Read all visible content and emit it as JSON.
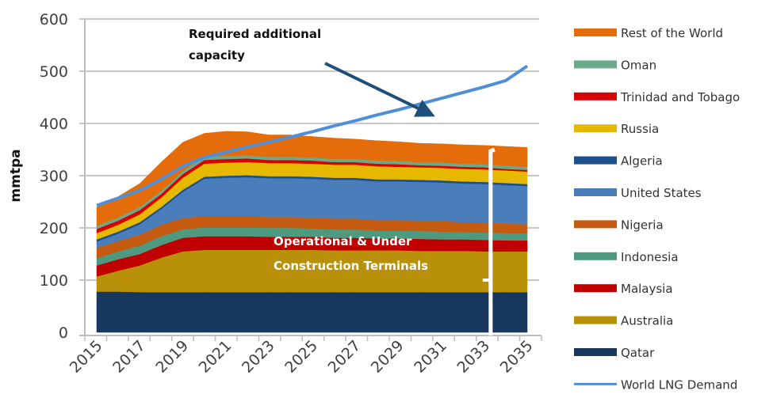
{
  "chart_data": {
    "type": "area",
    "stacked": true,
    "title": "",
    "xlabel": "",
    "ylabel": "mmtpa",
    "ylim": [
      0,
      600
    ],
    "yticks": [
      0,
      100,
      200,
      300,
      400,
      500,
      600
    ],
    "grid": true,
    "x": [
      2015,
      2016,
      2017,
      2018,
      2019,
      2020,
      2021,
      2022,
      2023,
      2024,
      2025,
      2026,
      2027,
      2028,
      2029,
      2030,
      2031,
      2032,
      2033,
      2034,
      2035
    ],
    "xtick_labels": [
      "2015",
      "2017",
      "2019",
      "2021",
      "2023",
      "2025",
      "2027",
      "2029",
      "2031",
      "2033",
      "2035"
    ],
    "legend_position": "right",
    "series": [
      {
        "name": "Qatar",
        "color": "#17375e",
        "values": [
          78,
          78,
          77,
          77,
          77,
          77,
          77,
          77,
          77,
          77,
          77,
          77,
          77,
          77,
          77,
          77,
          77,
          77,
          77,
          77,
          77
        ]
      },
      {
        "name": "Australia",
        "color": "#b8900a",
        "values": [
          29,
          40,
          51,
          66,
          78,
          81,
          81,
          81,
          81,
          81,
          81,
          80,
          80,
          80,
          80,
          79,
          79,
          79,
          78,
          78,
          78
        ]
      },
      {
        "name": "Malaysia",
        "color": "#c00000",
        "values": [
          21,
          22,
          22,
          24,
          26,
          26,
          26,
          26,
          25,
          25,
          25,
          24,
          24,
          23,
          23,
          23,
          22,
          22,
          22,
          21,
          21
        ]
      },
      {
        "name": "Indonesia",
        "color": "#4e9a80",
        "values": [
          14,
          15,
          16,
          17,
          16,
          17,
          17,
          17,
          17,
          17,
          16,
          16,
          16,
          15,
          15,
          15,
          15,
          14,
          14,
          14,
          14
        ]
      },
      {
        "name": "Nigeria",
        "color": "#c55a11",
        "values": [
          20,
          20,
          21,
          22,
          22,
          22,
          22,
          22,
          21,
          21,
          21,
          21,
          21,
          20,
          20,
          20,
          20,
          19,
          19,
          19,
          18
        ]
      },
      {
        "name": "United States",
        "color": "#4a7ebb",
        "values": [
          12,
          14,
          20,
          30,
          50,
          71,
          73,
          74,
          74,
          74,
          74,
          74,
          74,
          74,
          74,
          74,
          74,
          74,
          74,
          73,
          72
        ]
      },
      {
        "name": "Algeria",
        "color": "#1f4e8c",
        "values": [
          4,
          4,
          4,
          4,
          4,
          4,
          4,
          4,
          4,
          4,
          4,
          4,
          4,
          4,
          4,
          4,
          4,
          4,
          4,
          4,
          4
        ]
      },
      {
        "name": "Russia",
        "color": "#e6b800",
        "values": [
          12,
          13,
          15,
          18,
          23,
          25,
          25,
          25,
          25,
          25,
          25,
          25,
          25,
          25,
          24,
          24,
          24,
          24,
          24,
          24,
          24
        ]
      },
      {
        "name": "Trinidad and Tobago",
        "color": "#d90000",
        "values": [
          8,
          8,
          8,
          7,
          7,
          7,
          7,
          7,
          6,
          6,
          6,
          5,
          5,
          5,
          5,
          4,
          4,
          4,
          4,
          3,
          3
        ]
      },
      {
        "name": "Oman",
        "color": "#6aaa8a",
        "values": [
          6,
          6,
          6,
          6,
          6,
          6,
          6,
          6,
          6,
          6,
          6,
          6,
          6,
          6,
          6,
          6,
          6,
          6,
          6,
          6,
          6
        ]
      },
      {
        "name": "Rest of the World",
        "color": "#e46c0a",
        "values": [
          36,
          40,
          45,
          55,
          55,
          45,
          47,
          45,
          42,
          42,
          40,
          40,
          38,
          38,
          37,
          36,
          36,
          36,
          36,
          37,
          37
        ]
      }
    ],
    "line_series": {
      "name": "World LNG Demand",
      "color": "#4f8fd6",
      "values": [
        243,
        257,
        272,
        293,
        318,
        335,
        345,
        355,
        364,
        374,
        384,
        395,
        405,
        416,
        426,
        437,
        448,
        459,
        470,
        482,
        510
      ]
    },
    "annotations": [
      {
        "text_lines": [
          "Required additional",
          "capacity"
        ],
        "color": "#111111"
      },
      {
        "text_lines": [
          "Operational & Under",
          "Construction Terminals"
        ],
        "color": "#ffffff"
      }
    ],
    "legend": [
      "Rest of the World",
      "Oman",
      "Trinidad and Tobago",
      "Russia",
      "Algeria",
      "United States",
      "Nigeria",
      "Indonesia",
      "Malaysia",
      "Australia",
      "Qatar",
      "World LNG Demand"
    ]
  }
}
